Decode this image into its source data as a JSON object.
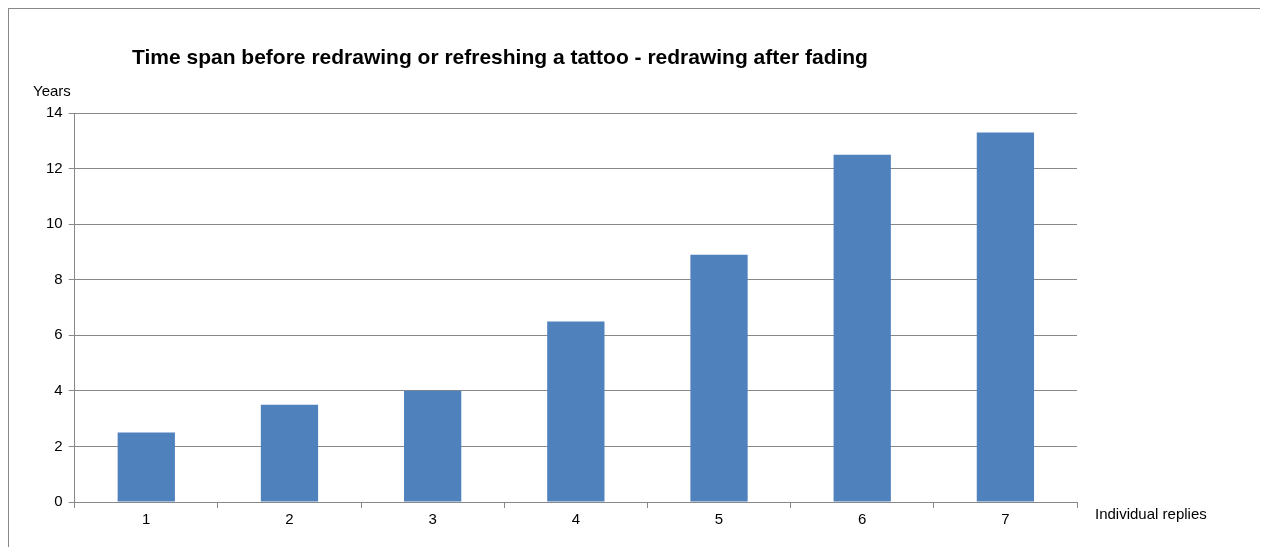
{
  "chart_data": {
    "type": "bar",
    "title": "Time span before redrawing or refreshing a tattoo - redrawing after fading",
    "xlabel": "Individual replies",
    "ylabel": "Years",
    "categories": [
      "1",
      "2",
      "3",
      "4",
      "5",
      "6",
      "7"
    ],
    "values": [
      2.5,
      3.5,
      4,
      6.5,
      8.9,
      12.5,
      13.3
    ],
    "color": "#4f81bd",
    "ylim": [
      0,
      14
    ],
    "yticks": [
      0,
      2,
      4,
      6,
      8,
      10,
      12,
      14
    ],
    "grid": "y",
    "legend": false
  }
}
